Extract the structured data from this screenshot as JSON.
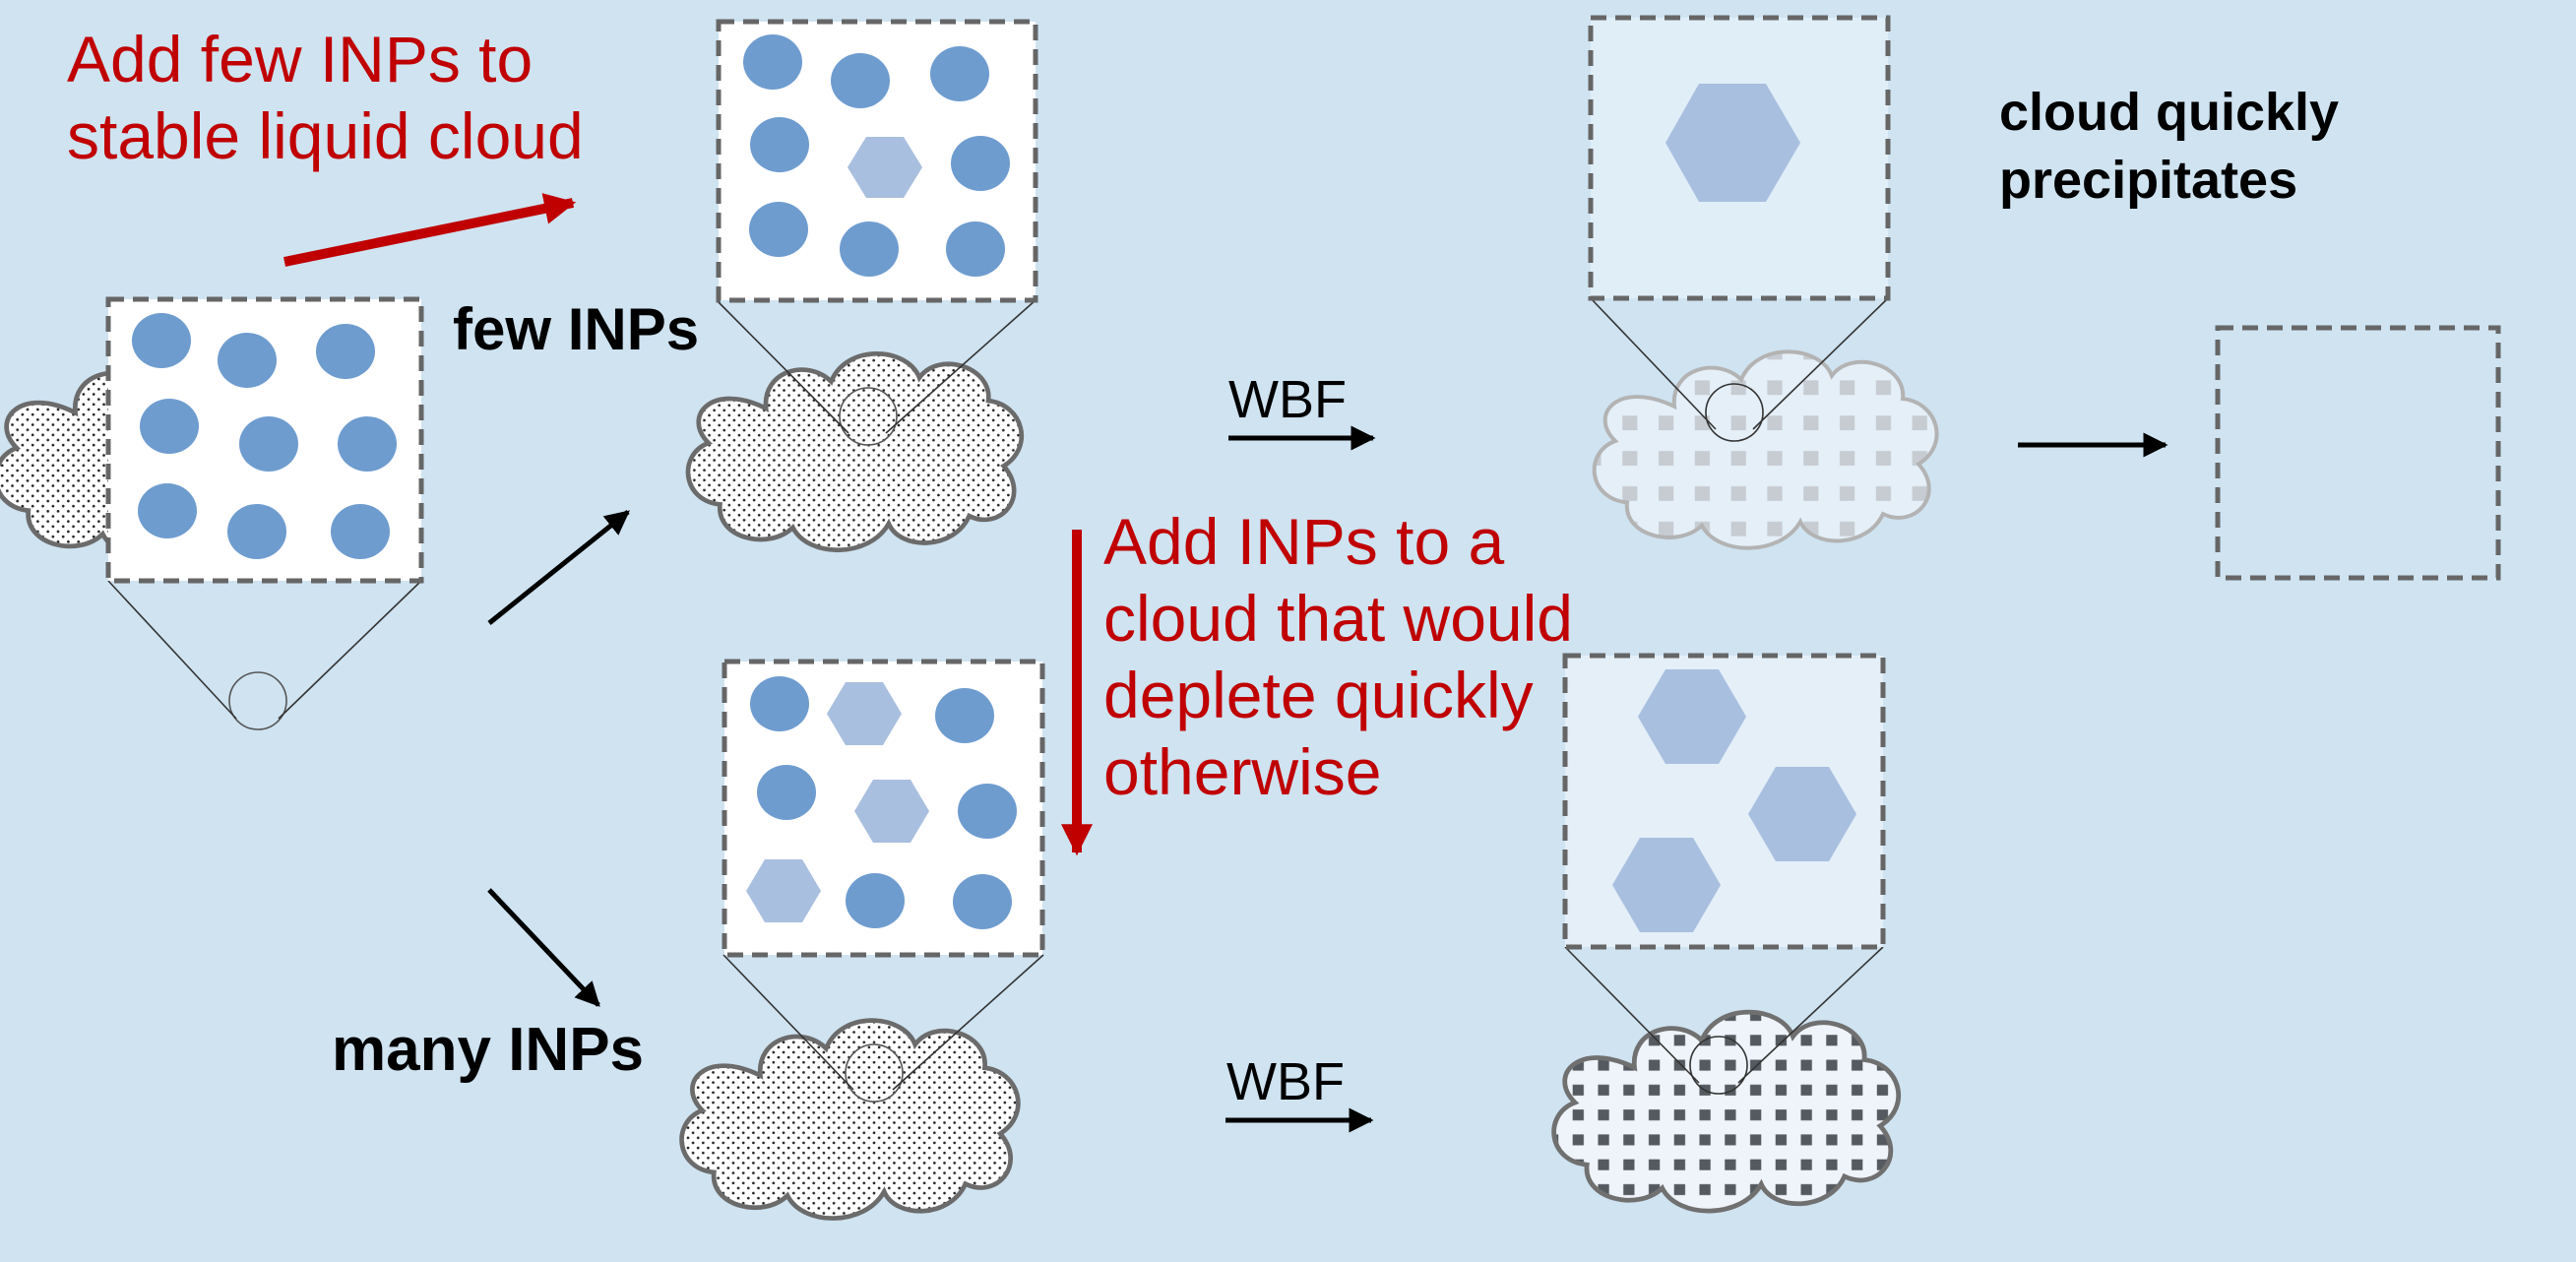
{
  "labels": {
    "add_few_line1": "Add few INPs to",
    "add_few_line2": "stable liquid cloud",
    "few_inps": "few INPs",
    "many_inps": "many INPs",
    "wbf_top": "WBF",
    "wbf_bottom": "WBF",
    "add_inps_line1": "Add INPs to a",
    "add_inps_line2": "cloud that would",
    "add_inps_line3": "deplete quickly",
    "add_inps_line4": "otherwise",
    "precip_line1": "cloud quickly",
    "precip_line2": "precipitates"
  },
  "colors": {
    "background": "#cfe3f1",
    "droplet": "#6e9ccf",
    "ice_crystal": "#a9bfdf",
    "annotation_red": "#c00000",
    "box_border": "#666666"
  }
}
